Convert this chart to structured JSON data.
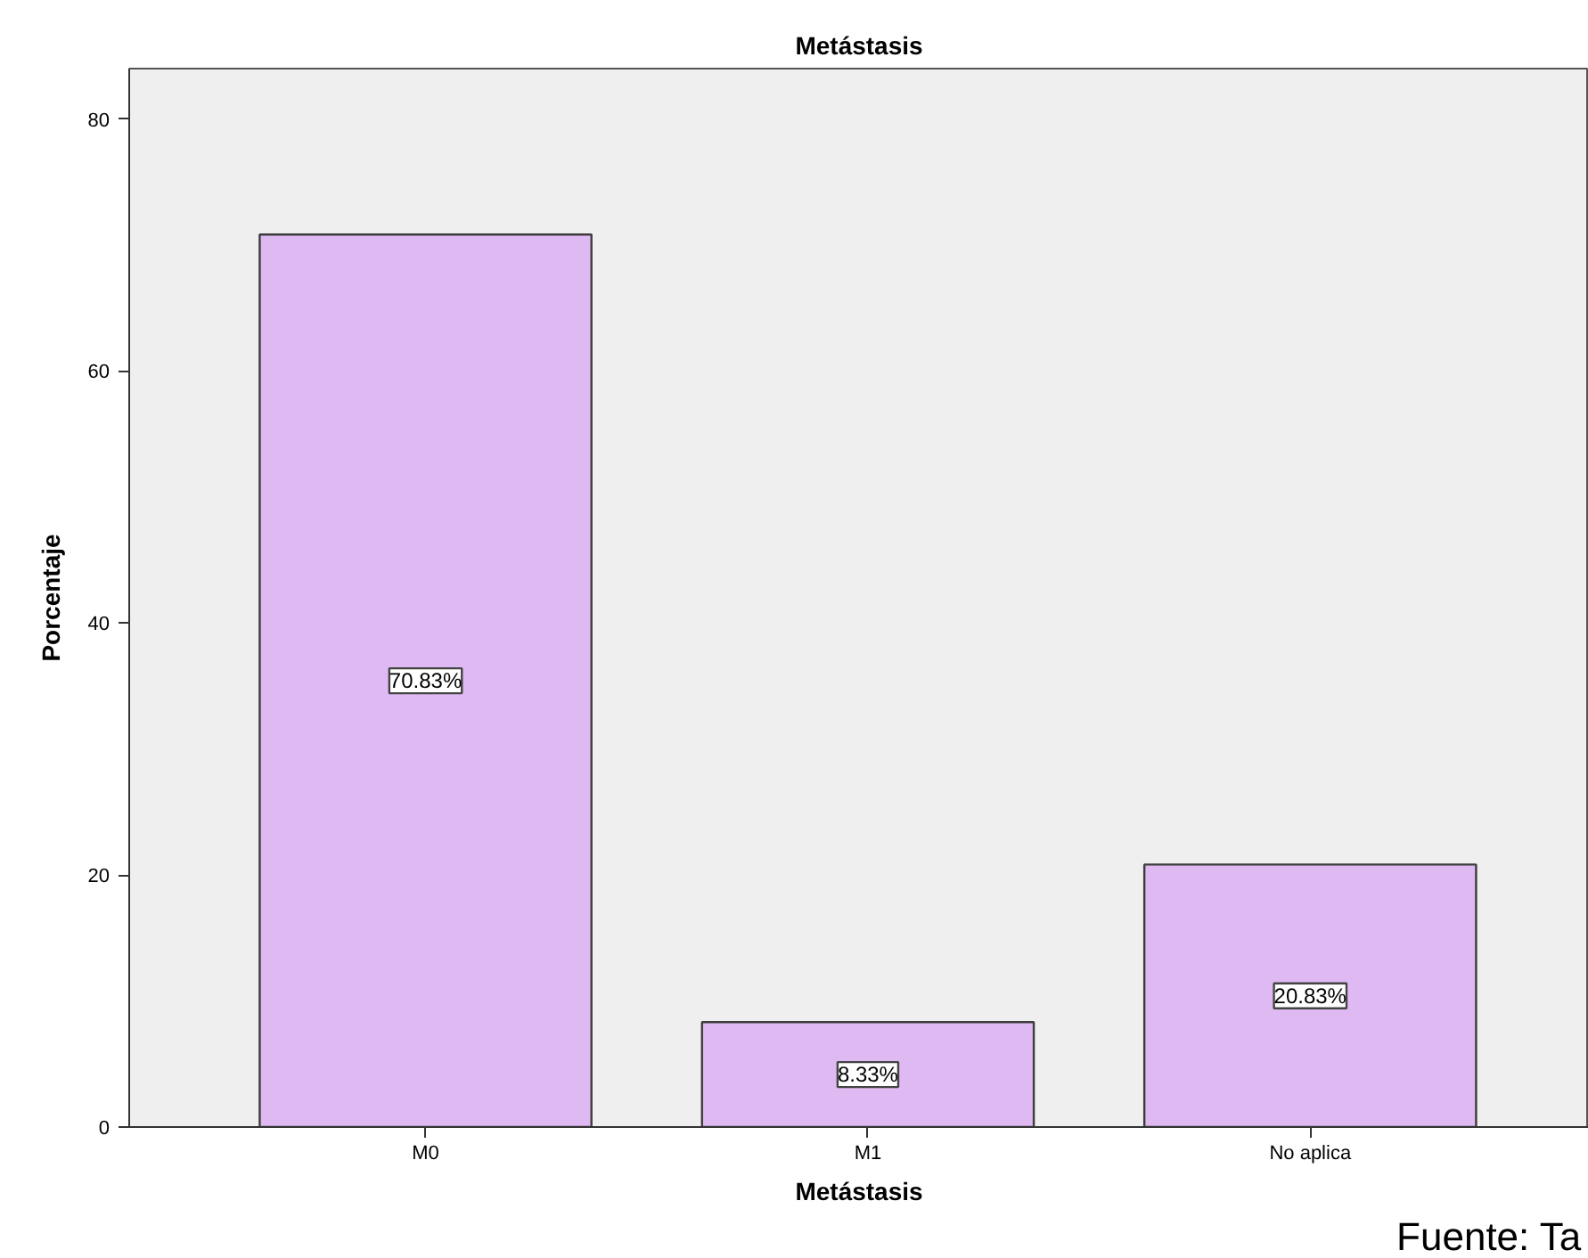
{
  "chart_data": {
    "type": "bar",
    "title": "Metástasis",
    "xlabel": "Metástasis",
    "ylabel": "Porcentaje",
    "categories": [
      "M0",
      "M1",
      "No aplica"
    ],
    "values": [
      70.83,
      8.33,
      20.83
    ],
    "value_labels": [
      "70.83%",
      "8.33%",
      "20.83%"
    ],
    "color": "#dfb9f1",
    "ylim": [
      0,
      84
    ],
    "yticks": [
      0,
      20,
      40,
      60,
      80
    ],
    "grid": false,
    "annotations": [
      "Fuente: Ta"
    ]
  }
}
